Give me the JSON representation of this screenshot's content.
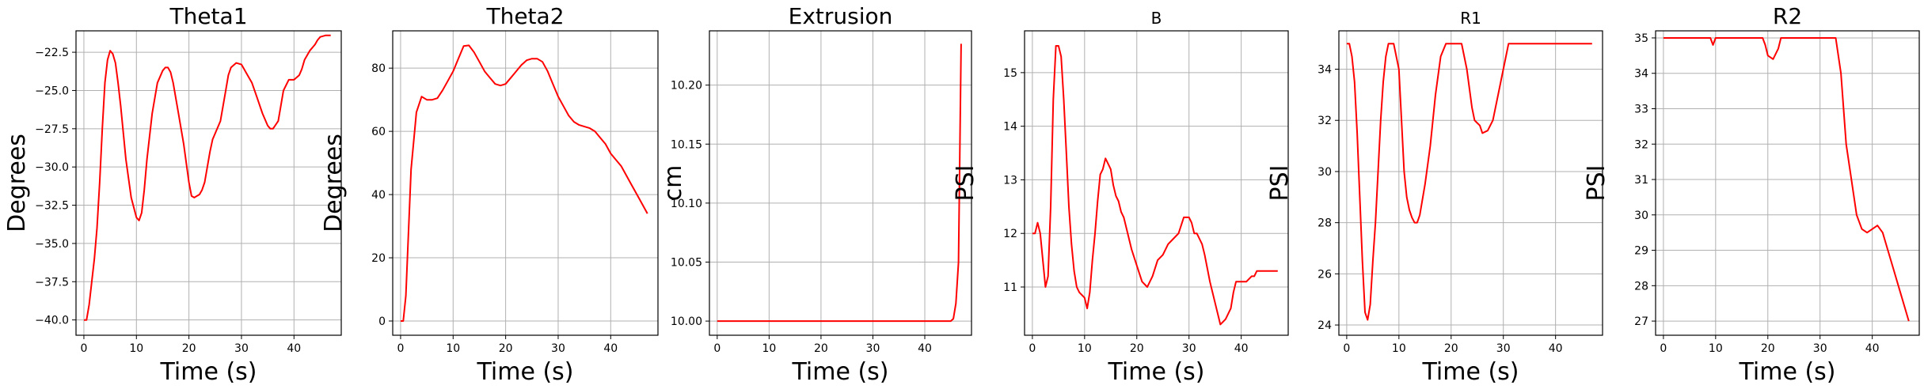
{
  "chart_data": [
    {
      "type": "line",
      "title": "Theta1",
      "xlabel": "Time (s)",
      "ylabel": "Degrees",
      "xlim": [
        -1.5,
        49
      ],
      "ylim": [
        -41.0,
        -21.1
      ],
      "xticks": [
        0,
        10,
        20,
        30,
        40
      ],
      "yticks": [
        -40.0,
        -37.5,
        -35.0,
        -32.5,
        -30.0,
        -27.5,
        -25.0,
        -22.5
      ],
      "ytick_labels": [
        "−40.0",
        "−37.5",
        "−35.0",
        "−32.5",
        "−30.0",
        "−27.5",
        "−25.0",
        "−22.5"
      ],
      "grid": true,
      "color": "#ff0000",
      "x": [
        0,
        0.5,
        1,
        1.5,
        2,
        2.5,
        3,
        3.5,
        4,
        4.5,
        5,
        5.5,
        6,
        6.5,
        7,
        8,
        9,
        10,
        10.5,
        11,
        11.5,
        12,
        13,
        14,
        15,
        15.5,
        16,
        16.5,
        17,
        18,
        19,
        20,
        20.5,
        21,
        22,
        22.5,
        23,
        24,
        24.5,
        25,
        26,
        27,
        27.5,
        28,
        29,
        30,
        30.5,
        31,
        32,
        33,
        34,
        35,
        35.5,
        36,
        37,
        37.5,
        38,
        39,
        40,
        41,
        41.5,
        42,
        43,
        44,
        44.5,
        45,
        46,
        47
      ],
      "y": [
        -40.0,
        -40.0,
        -39.0,
        -37.5,
        -36.0,
        -34.0,
        -31.0,
        -27.5,
        -24.5,
        -23.0,
        -22.4,
        -22.6,
        -23.2,
        -24.5,
        -26.0,
        -29.5,
        -32.0,
        -33.3,
        -33.5,
        -33.0,
        -31.5,
        -29.5,
        -26.5,
        -24.5,
        -23.7,
        -23.5,
        -23.5,
        -23.8,
        -24.5,
        -26.5,
        -28.5,
        -31.0,
        -31.9,
        -32.0,
        -31.8,
        -31.5,
        -31.0,
        -29.0,
        -28.2,
        -27.8,
        -27.0,
        -25.0,
        -24.0,
        -23.5,
        -23.2,
        -23.3,
        -23.6,
        -23.9,
        -24.5,
        -25.5,
        -26.5,
        -27.3,
        -27.5,
        -27.5,
        -27.0,
        -26.0,
        -25.0,
        -24.3,
        -24.3,
        -24.0,
        -23.6,
        -23.0,
        -22.4,
        -22.0,
        -21.7,
        -21.5,
        -21.4,
        -21.4
      ]
    },
    {
      "type": "line",
      "title": "Theta2",
      "xlabel": "Time (s)",
      "ylabel": "Degrees",
      "xlim": [
        -1.5,
        49
      ],
      "ylim": [
        -4.5,
        91.8
      ],
      "xticks": [
        0,
        10,
        20,
        30,
        40
      ],
      "yticks": [
        0,
        20,
        40,
        60,
        80
      ],
      "ytick_labels": [
        "0",
        "20",
        "40",
        "60",
        "80"
      ],
      "grid": true,
      "color": "#ff0000",
      "x": [
        0,
        0.5,
        1,
        1.5,
        2,
        3,
        4,
        5,
        6,
        7,
        8,
        9,
        10,
        11,
        12,
        13,
        14,
        15,
        16,
        17,
        18,
        19,
        20,
        21,
        22,
        23,
        24,
        25,
        26,
        27,
        28,
        29,
        30,
        31,
        32,
        33,
        34,
        35,
        36,
        37,
        38,
        39,
        40,
        41,
        42,
        43,
        44,
        45,
        46,
        47
      ],
      "y": [
        0,
        0,
        8,
        28,
        48,
        66,
        71,
        70,
        70,
        70.5,
        73,
        76,
        79,
        83,
        87,
        87.2,
        85,
        82,
        79,
        77,
        75,
        74.5,
        75,
        77,
        79,
        81,
        82.5,
        83,
        83,
        82,
        79,
        75,
        71,
        68,
        65,
        63,
        62,
        61.5,
        61,
        60,
        58,
        56,
        53,
        51,
        49,
        46,
        43,
        40,
        37,
        34
      ]
    },
    {
      "type": "line",
      "title": "Extrusion",
      "xlabel": "Time (s)",
      "ylabel": "cm",
      "xlim": [
        -1.5,
        49
      ],
      "ylim": [
        9.988,
        10.246
      ],
      "xticks": [
        0,
        10,
        20,
        30,
        40
      ],
      "yticks": [
        10.0,
        10.05,
        10.1,
        10.15,
        10.2
      ],
      "ytick_labels": [
        "10.00",
        "10.05",
        "10.10",
        "10.15",
        "10.20"
      ],
      "grid": true,
      "color": "#ff0000",
      "x": [
        0,
        10,
        20,
        30,
        40,
        44,
        45,
        45.5,
        46,
        46.5,
        47
      ],
      "y": [
        10.0,
        10.0,
        10.0,
        10.0,
        10.0,
        10.0,
        10.0,
        10.002,
        10.015,
        10.05,
        10.235
      ]
    },
    {
      "type": "line",
      "title": "B",
      "xlabel": "Time (s)",
      "ylabel": "PSI",
      "xlim": [
        -1.5,
        49
      ],
      "ylim": [
        10.1,
        15.78
      ],
      "xticks": [
        0,
        10,
        20,
        30,
        40
      ],
      "yticks": [
        11,
        12,
        13,
        14,
        15
      ],
      "ytick_labels": [
        "11",
        "12",
        "13",
        "14",
        "15"
      ],
      "grid": true,
      "color": "#ff0000",
      "x": [
        0,
        0.5,
        1,
        1.5,
        2,
        2.5,
        3,
        3.5,
        4,
        4.5,
        5,
        5.5,
        6,
        6.5,
        7,
        7.5,
        8,
        8.5,
        9,
        10,
        10.5,
        11,
        11.5,
        12,
        12.5,
        13,
        13.5,
        14,
        14.5,
        15,
        15.5,
        16,
        16.5,
        17,
        17.5,
        18,
        19,
        20,
        21,
        22,
        22.5,
        23,
        24,
        25,
        26,
        27,
        28,
        29,
        30,
        30.5,
        31,
        31.5,
        32,
        32.5,
        33,
        34,
        35,
        36,
        37,
        38,
        38.5,
        39,
        39.5,
        40,
        41,
        42,
        42.5,
        43,
        44,
        45,
        46,
        47
      ],
      "y": [
        12.0,
        12.0,
        12.2,
        12.0,
        11.5,
        11.0,
        11.2,
        12.5,
        14.5,
        15.5,
        15.5,
        15.3,
        14.5,
        13.5,
        12.5,
        11.8,
        11.3,
        11.0,
        10.9,
        10.8,
        10.6,
        10.9,
        11.5,
        12.0,
        12.6,
        13.1,
        13.2,
        13.4,
        13.3,
        13.2,
        12.9,
        12.7,
        12.6,
        12.4,
        12.3,
        12.1,
        11.7,
        11.4,
        11.1,
        11.0,
        11.1,
        11.2,
        11.5,
        11.6,
        11.8,
        11.9,
        12.0,
        12.3,
        12.3,
        12.2,
        12.0,
        12.0,
        11.9,
        11.8,
        11.6,
        11.1,
        10.7,
        10.3,
        10.4,
        10.6,
        10.9,
        11.1,
        11.1,
        11.1,
        11.1,
        11.2,
        11.2,
        11.3,
        11.3,
        11.3,
        11.3,
        11.3
      ]
    },
    {
      "type": "line",
      "title": "R1",
      "xlabel": "Time (s)",
      "ylabel": "PSI",
      "xlim": [
        -1.5,
        49
      ],
      "ylim": [
        23.6,
        35.5
      ],
      "xticks": [
        0,
        10,
        20,
        30,
        40
      ],
      "yticks": [
        24,
        26,
        28,
        30,
        32,
        34
      ],
      "ytick_labels": [
        "24",
        "26",
        "28",
        "30",
        "32",
        "34"
      ],
      "grid": true,
      "color": "#ff0000",
      "x": [
        0,
        0.5,
        1,
        1.5,
        2,
        2.5,
        3,
        3.5,
        4,
        4.5,
        5,
        5.5,
        6,
        6.5,
        7,
        7.5,
        8,
        8.5,
        9,
        10,
        10.5,
        11,
        11.5,
        12,
        12.5,
        13,
        13.5,
        14,
        15,
        16,
        17,
        18,
        19,
        20,
        20.5,
        21,
        22,
        23,
        24,
        24.5,
        25,
        25.5,
        26,
        27,
        28,
        29,
        30,
        31,
        32,
        33,
        34,
        35,
        40,
        45,
        47
      ],
      "y": [
        35.0,
        35.0,
        34.5,
        33.5,
        31.5,
        29.0,
        26.5,
        24.5,
        24.2,
        24.8,
        26.5,
        28.0,
        30.0,
        32.0,
        33.5,
        34.5,
        35.0,
        35.0,
        35.0,
        34.0,
        32.0,
        30.0,
        29.0,
        28.5,
        28.2,
        28.0,
        28.0,
        28.3,
        29.5,
        31.0,
        33.0,
        34.5,
        35.0,
        35.0,
        35.0,
        35.0,
        35.0,
        34.0,
        32.5,
        32.0,
        31.9,
        31.8,
        31.5,
        31.6,
        32.0,
        33.0,
        34.0,
        35.0,
        35.0,
        35.0,
        35.0,
        35.0,
        35.0,
        35.0,
        35.0
      ]
    },
    {
      "type": "line",
      "title": "R2",
      "xlabel": "Time (s)",
      "ylabel": "PSI",
      "xlim": [
        -1.5,
        49
      ],
      "ylim": [
        26.6,
        35.2
      ],
      "xticks": [
        0,
        10,
        20,
        30,
        40
      ],
      "yticks": [
        27,
        28,
        29,
        30,
        31,
        32,
        33,
        34,
        35
      ],
      "ytick_labels": [
        "27",
        "28",
        "29",
        "30",
        "31",
        "32",
        "33",
        "34",
        "35"
      ],
      "grid": true,
      "color": "#ff0000",
      "x": [
        0,
        8,
        9,
        9.5,
        10,
        15,
        19,
        19.5,
        20,
        21,
        22,
        22.5,
        23,
        25,
        30,
        32,
        33,
        34,
        34.5,
        35,
        36,
        37,
        38,
        39,
        40,
        41,
        42,
        43,
        44,
        45,
        46,
        47
      ],
      "y": [
        35.0,
        35.0,
        35.0,
        34.8,
        35.0,
        35.0,
        35.0,
        34.8,
        34.5,
        34.4,
        34.7,
        35.0,
        35.0,
        35.0,
        35.0,
        35.0,
        35.0,
        34.0,
        33.0,
        32.0,
        31.0,
        30.0,
        29.6,
        29.5,
        29.6,
        29.7,
        29.5,
        29.0,
        28.5,
        28.0,
        27.5,
        27.0
      ]
    }
  ]
}
